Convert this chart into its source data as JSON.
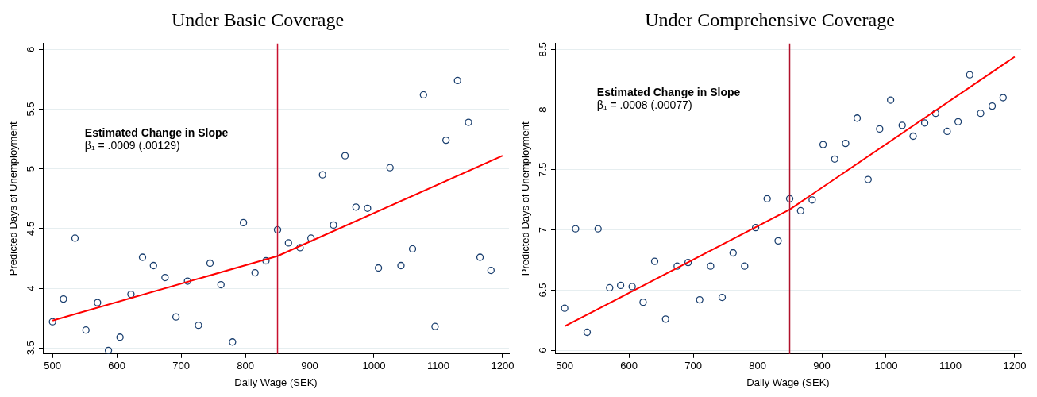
{
  "chart_data": [
    {
      "type": "scatter",
      "title": "Under Basic Coverage",
      "xlabel": "Daily Wage (SEK)",
      "ylabel": "Predicted Days of Unemployment",
      "annotations": [
        "Estimated Change in Slope",
        "β₁ = .0009 (.00129)"
      ],
      "xlim": [
        485,
        1210
      ],
      "xticks": [
        500,
        600,
        700,
        800,
        900,
        1000,
        1100,
        1200
      ],
      "ylim": [
        3.45,
        6.05
      ],
      "yticks": [
        3.5,
        4,
        4.5,
        5,
        5.5,
        6
      ],
      "grid": "y",
      "legend": false,
      "ref_lines": [
        {
          "axis": "x",
          "value": 850,
          "color": "#c8102e"
        }
      ],
      "series": [
        {
          "type": "scatter",
          "marker": "circle",
          "color": "#1a3f6f",
          "x": [
            500,
            517,
            535,
            552,
            570,
            587,
            605,
            622,
            640,
            657,
            675,
            692,
            710,
            727,
            745,
            762,
            780,
            797,
            815,
            832,
            850,
            867,
            885,
            902,
            920,
            937,
            955,
            972,
            990,
            1007,
            1025,
            1042,
            1060,
            1077,
            1095,
            1112,
            1130,
            1147,
            1165,
            1182
          ],
          "values": [
            3.72,
            3.91,
            4.42,
            3.65,
            3.88,
            3.48,
            3.59,
            3.95,
            4.26,
            4.19,
            4.09,
            3.76,
            4.06,
            3.69,
            4.21,
            4.03,
            3.55,
            4.55,
            4.13,
            4.23,
            4.49,
            4.38,
            4.34,
            4.42,
            4.95,
            4.53,
            5.11,
            4.68,
            4.67,
            4.17,
            5.01,
            4.19,
            4.33,
            5.62,
            3.68,
            5.24,
            5.74,
            5.39,
            4.26,
            4.15
          ]
        },
        {
          "type": "line",
          "color": "#ff0000",
          "x": [
            500,
            850,
            1200
          ],
          "values": [
            3.73,
            4.27,
            5.11
          ]
        }
      ]
    },
    {
      "type": "scatter",
      "title": "Under Comprehensive Coverage",
      "xlabel": "Daily Wage (SEK)",
      "ylabel": "Predicted Days of Unemployment",
      "annotations": [
        "Estimated Change in Slope",
        "β₁ = .0008 (.00077)"
      ],
      "xlim": [
        485,
        1210
      ],
      "xticks": [
        500,
        600,
        700,
        800,
        900,
        1000,
        1100,
        1200
      ],
      "ylim": [
        5.97,
        8.55
      ],
      "yticks": [
        6,
        6.5,
        7,
        7.5,
        8,
        8.5
      ],
      "grid": "y",
      "legend": false,
      "ref_lines": [
        {
          "axis": "x",
          "value": 850,
          "color": "#b0102a"
        }
      ],
      "series": [
        {
          "type": "scatter",
          "marker": "circle",
          "color": "#1a3f6f",
          "x": [
            500,
            517,
            535,
            552,
            570,
            587,
            605,
            622,
            640,
            657,
            675,
            692,
            710,
            727,
            745,
            762,
            780,
            797,
            815,
            832,
            850,
            867,
            885,
            902,
            920,
            937,
            955,
            972,
            990,
            1007,
            1025,
            1042,
            1060,
            1077,
            1095,
            1112,
            1130,
            1147,
            1165,
            1182
          ],
          "values": [
            6.35,
            7.01,
            6.15,
            7.01,
            6.52,
            6.54,
            6.53,
            6.4,
            6.74,
            6.26,
            6.7,
            6.73,
            6.42,
            6.7,
            6.44,
            6.81,
            6.7,
            7.02,
            7.26,
            6.91,
            7.26,
            7.16,
            7.25,
            7.71,
            7.59,
            7.72,
            7.93,
            7.42,
            7.84,
            8.08,
            7.87,
            7.78,
            7.89,
            7.97,
            7.82,
            7.9,
            8.29,
            7.97,
            8.03,
            8.1
          ]
        },
        {
          "type": "line",
          "color": "#ff0000",
          "x": [
            500,
            850,
            1200
          ],
          "values": [
            6.2,
            7.17,
            8.44
          ]
        }
      ]
    }
  ]
}
